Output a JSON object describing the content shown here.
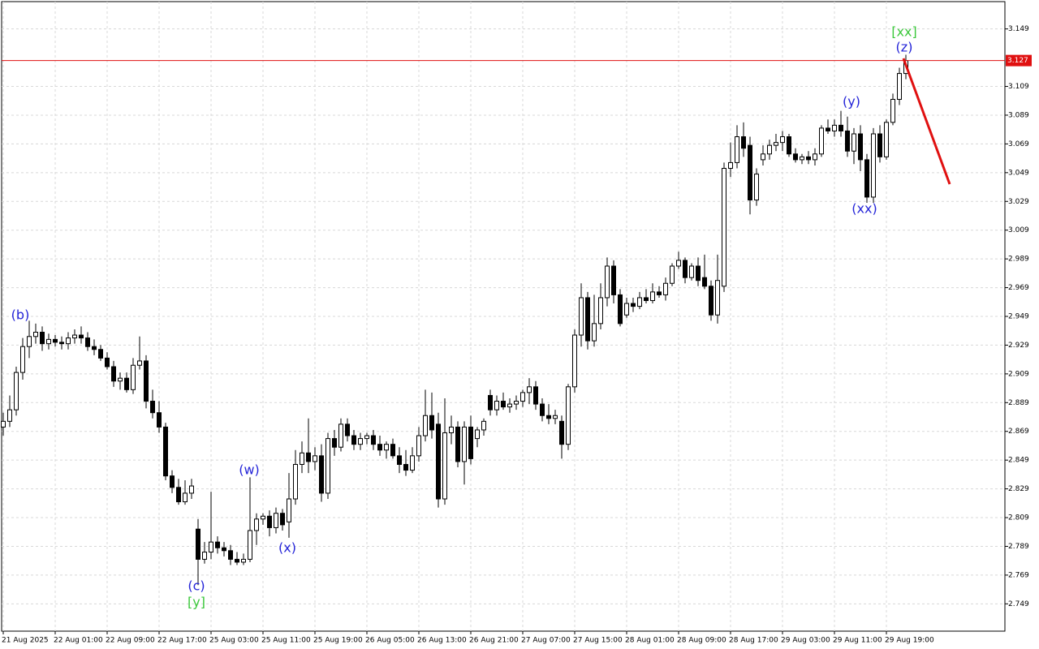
{
  "chart_data": {
    "type": "candlestick",
    "categories": [
      "21 Aug 2025",
      null,
      null,
      null,
      null,
      null,
      null,
      null,
      "22 Aug 01:00",
      null,
      null,
      null,
      null,
      null,
      null,
      null,
      "22 Aug 09:00",
      null,
      null,
      null,
      null,
      null,
      null,
      null,
      "22 Aug 17:00",
      null,
      null,
      null,
      null,
      null,
      null,
      null,
      "25 Aug 03:00",
      null,
      null,
      null,
      null,
      null,
      null,
      null,
      "25 Aug 11:00",
      null,
      null,
      null,
      null,
      null,
      null,
      null,
      "25 Aug 19:00",
      null,
      null,
      null,
      null,
      null,
      null,
      null,
      "26 Aug 05:00",
      null,
      null,
      null,
      null,
      null,
      null,
      null,
      "26 Aug 13:00",
      null,
      null,
      null,
      null,
      null,
      null,
      null,
      "26 Aug 21:00",
      null,
      null,
      null,
      null,
      null,
      null,
      null,
      "27 Aug 07:00",
      null,
      null,
      null,
      null,
      null,
      null,
      null,
      "27 Aug 15:00",
      null,
      null,
      null,
      null,
      null,
      null,
      null,
      "28 Aug 01:00",
      null,
      null,
      null,
      null,
      null,
      null,
      null,
      "28 Aug 09:00",
      null,
      null,
      null,
      null,
      null,
      null,
      null,
      "28 Aug 17:00",
      null,
      null,
      null,
      null,
      null,
      null,
      null,
      "29 Aug 03:00",
      null,
      null,
      null,
      null,
      null,
      null,
      null,
      "29 Aug 11:00",
      null,
      null,
      null,
      null,
      null,
      null,
      null,
      "29 Aug 19:00",
      null,
      null,
      null
    ],
    "candles": [
      [
        2.872,
        2.882,
        2.866,
        2.876
      ],
      [
        2.876,
        2.894,
        2.872,
        2.884
      ],
      [
        2.884,
        2.914,
        2.88,
        2.91
      ],
      [
        2.91,
        2.934,
        2.905,
        2.928
      ],
      [
        2.928,
        2.946,
        2.92,
        2.935
      ],
      [
        2.935,
        2.944,
        2.93,
        2.938
      ],
      [
        2.938,
        2.942,
        2.925,
        2.93
      ],
      [
        2.93,
        2.937,
        2.926,
        2.933
      ],
      [
        2.933,
        2.936,
        2.928,
        2.931
      ],
      [
        2.931,
        2.935,
        2.926,
        2.93
      ],
      [
        2.93,
        2.938,
        2.926,
        2.934
      ],
      [
        2.934,
        2.94,
        2.93,
        2.936
      ],
      [
        2.936,
        2.942,
        2.93,
        2.934
      ],
      [
        2.934,
        2.938,
        2.925,
        2.928
      ],
      [
        2.928,
        2.933,
        2.922,
        2.926
      ],
      [
        2.926,
        2.929,
        2.918,
        2.92
      ],
      [
        2.92,
        2.924,
        2.912,
        2.914
      ],
      [
        2.914,
        2.918,
        2.9,
        2.904
      ],
      [
        2.904,
        2.91,
        2.898,
        2.906
      ],
      [
        2.906,
        2.91,
        2.896,
        2.898
      ],
      [
        2.898,
        2.92,
        2.895,
        2.915
      ],
      [
        2.915,
        2.935,
        2.912,
        2.918
      ],
      [
        2.918,
        2.922,
        2.885,
        2.89
      ],
      [
        2.89,
        2.898,
        2.878,
        2.882
      ],
      [
        2.882,
        2.89,
        2.868,
        2.872
      ],
      [
        2.872,
        2.875,
        2.835,
        2.838
      ],
      [
        2.838,
        2.842,
        2.826,
        2.83
      ],
      [
        2.83,
        2.836,
        2.818,
        2.82
      ],
      [
        2.82,
        2.835,
        2.818,
        2.826
      ],
      [
        2.826,
        2.836,
        2.822,
        2.831
      ],
      [
        2.801,
        2.808,
        2.762,
        2.78
      ],
      [
        2.78,
        2.792,
        2.777,
        2.785
      ],
      [
        2.785,
        2.827,
        2.78,
        2.792
      ],
      [
        2.792,
        2.796,
        2.784,
        2.788
      ],
      [
        2.788,
        2.792,
        2.782,
        2.786
      ],
      [
        2.786,
        2.79,
        2.776,
        2.78
      ],
      [
        2.78,
        2.785,
        2.776,
        2.778
      ],
      [
        2.778,
        2.784,
        2.776,
        2.78
      ],
      [
        2.78,
        2.837,
        2.778,
        2.8
      ],
      [
        2.8,
        2.812,
        2.79,
        2.808
      ],
      [
        2.808,
        2.812,
        2.804,
        2.81
      ],
      [
        2.81,
        2.814,
        2.796,
        2.802
      ],
      [
        2.802,
        2.816,
        2.798,
        2.812
      ],
      [
        2.812,
        2.815,
        2.8,
        2.804
      ],
      [
        2.806,
        2.84,
        2.795,
        2.822
      ],
      [
        2.822,
        2.856,
        2.818,
        2.846
      ],
      [
        2.846,
        2.862,
        2.84,
        2.854
      ],
      [
        2.854,
        2.878,
        2.84,
        2.848
      ],
      [
        2.848,
        2.858,
        2.842,
        2.852
      ],
      [
        2.852,
        2.86,
        2.82,
        2.826
      ],
      [
        2.826,
        2.868,
        2.822,
        2.864
      ],
      [
        2.864,
        2.87,
        2.852,
        2.858
      ],
      [
        2.858,
        2.878,
        2.855,
        2.874
      ],
      [
        2.874,
        2.878,
        2.862,
        2.866
      ],
      [
        2.866,
        2.87,
        2.856,
        2.86
      ],
      [
        2.86,
        2.868,
        2.856,
        2.864
      ],
      [
        2.864,
        2.868,
        2.86,
        2.866
      ],
      [
        2.866,
        2.87,
        2.856,
        2.86
      ],
      [
        2.86,
        2.866,
        2.852,
        2.856
      ],
      [
        2.856,
        2.862,
        2.85,
        2.86
      ],
      [
        2.86,
        2.864,
        2.85,
        2.852
      ],
      [
        2.852,
        2.858,
        2.84,
        2.846
      ],
      [
        2.846,
        2.856,
        2.838,
        2.842
      ],
      [
        2.842,
        2.858,
        2.84,
        2.852
      ],
      [
        2.852,
        2.872,
        2.848,
        2.866
      ],
      [
        2.866,
        2.898,
        2.862,
        2.88
      ],
      [
        2.88,
        2.896,
        2.864,
        2.87
      ],
      [
        2.874,
        2.882,
        2.816,
        2.822
      ],
      [
        2.822,
        2.892,
        2.818,
        2.868
      ],
      [
        2.868,
        2.88,
        2.86,
        2.872
      ],
      [
        2.872,
        2.876,
        2.844,
        2.848
      ],
      [
        2.848,
        2.876,
        2.832,
        2.872
      ],
      [
        2.872,
        2.88,
        2.846,
        2.85
      ],
      [
        2.864,
        2.872,
        2.858,
        2.87
      ],
      [
        2.87,
        2.878,
        2.866,
        2.876
      ],
      [
        2.894,
        2.898,
        2.88,
        2.884
      ],
      [
        2.884,
        2.894,
        2.88,
        2.89
      ],
      [
        2.89,
        2.896,
        2.884,
        2.886
      ],
      [
        2.886,
        2.892,
        2.882,
        2.888
      ],
      [
        2.888,
        2.894,
        2.884,
        2.89
      ],
      [
        2.89,
        2.898,
        2.886,
        2.896
      ],
      [
        2.896,
        2.906,
        2.888,
        2.9
      ],
      [
        2.9,
        2.904,
        2.884,
        2.888
      ],
      [
        2.888,
        2.892,
        2.876,
        2.88
      ],
      [
        2.88,
        2.888,
        2.874,
        2.878
      ],
      [
        2.878,
        2.884,
        2.874,
        2.88
      ],
      [
        2.876,
        2.88,
        2.85,
        2.86
      ],
      [
        2.86,
        2.902,
        2.856,
        2.9
      ],
      [
        2.9,
        2.94,
        2.896,
        2.936
      ],
      [
        2.936,
        2.972,
        2.928,
        2.962
      ],
      [
        2.962,
        2.966,
        2.926,
        2.932
      ],
      [
        2.932,
        2.964,
        2.928,
        2.944
      ],
      [
        2.944,
        2.972,
        2.94,
        2.962
      ],
      [
        2.962,
        2.99,
        2.956,
        2.984
      ],
      [
        2.984,
        2.988,
        2.958,
        2.964
      ],
      [
        2.964,
        2.968,
        2.942,
        2.944
      ],
      [
        2.95,
        2.962,
        2.948,
        2.958
      ],
      [
        2.958,
        2.962,
        2.952,
        2.956
      ],
      [
        2.956,
        2.966,
        2.954,
        2.962
      ],
      [
        2.962,
        2.968,
        2.958,
        2.96
      ],
      [
        2.96,
        2.972,
        2.958,
        2.966
      ],
      [
        2.966,
        2.97,
        2.962,
        2.964
      ],
      [
        2.964,
        2.976,
        2.96,
        2.972
      ],
      [
        2.972,
        2.986,
        2.97,
        2.984
      ],
      [
        2.984,
        2.994,
        2.982,
        2.988
      ],
      [
        2.988,
        2.99,
        2.972,
        2.976
      ],
      [
        2.976,
        2.986,
        2.974,
        2.984
      ],
      [
        2.984,
        2.99,
        2.97,
        2.974
      ],
      [
        2.976,
        2.992,
        2.968,
        2.97
      ],
      [
        2.97,
        2.974,
        2.946,
        2.95
      ],
      [
        2.95,
        2.992,
        2.944,
        2.974
      ],
      [
        2.97,
        3.056,
        2.966,
        3.052
      ],
      [
        3.052,
        3.07,
        3.046,
        3.056
      ],
      [
        3.056,
        3.082,
        3.052,
        3.074
      ],
      [
        3.074,
        3.084,
        3.06,
        3.066
      ],
      [
        3.068,
        3.074,
        3.02,
        3.03
      ],
      [
        3.03,
        3.052,
        3.026,
        3.048
      ],
      [
        3.058,
        3.068,
        3.054,
        3.062
      ],
      [
        3.062,
        3.072,
        3.058,
        3.068
      ],
      [
        3.068,
        3.076,
        3.064,
        3.07
      ],
      [
        3.07,
        3.078,
        3.064,
        3.074
      ],
      [
        3.074,
        3.076,
        3.06,
        3.062
      ],
      [
        3.062,
        3.066,
        3.056,
        3.058
      ],
      [
        3.058,
        3.062,
        3.055,
        3.06
      ],
      [
        3.06,
        3.064,
        3.055,
        3.058
      ],
      [
        3.058,
        3.066,
        3.054,
        3.062
      ],
      [
        3.062,
        3.082,
        3.06,
        3.08
      ],
      [
        3.08,
        3.086,
        3.076,
        3.078
      ],
      [
        3.078,
        3.086,
        3.074,
        3.082
      ],
      [
        3.082,
        3.092,
        3.074,
        3.078
      ],
      [
        3.078,
        3.088,
        3.06,
        3.064
      ],
      [
        3.064,
        3.08,
        3.055,
        3.076
      ],
      [
        3.076,
        3.082,
        3.05,
        3.058
      ],
      [
        3.058,
        3.062,
        3.028,
        3.032
      ],
      [
        3.032,
        3.08,
        3.028,
        3.076
      ],
      [
        3.076,
        3.082,
        3.056,
        3.06
      ],
      [
        3.06,
        3.086,
        3.058,
        3.084
      ],
      [
        3.084,
        3.104,
        3.082,
        3.1
      ],
      [
        3.1,
        3.122,
        3.096,
        3.118
      ],
      [
        3.118,
        3.131,
        3.114,
        3.127
      ]
    ],
    "ylim": [
      2.73,
      3.168
    ],
    "yticks": [
      3.149,
      3.109,
      3.089,
      3.069,
      3.049,
      3.029,
      3.009,
      2.989,
      2.969,
      2.949,
      2.929,
      2.909,
      2.889,
      2.869,
      2.849,
      2.829,
      2.809,
      2.789,
      2.769,
      2.749
    ],
    "grid": true,
    "current_price": 3.127,
    "price_line_color": "#e01010",
    "up_color": "#ffffff",
    "down_color": "#000000",
    "annotations": [
      {
        "text": "(b)",
        "color": "#2424d8"
      },
      {
        "text": "(c)",
        "color": "#2424d8"
      },
      {
        "text": "[y]",
        "color": "#3cc83c"
      },
      {
        "text": "(w)",
        "color": "#2424d8"
      },
      {
        "text": "(x)",
        "color": "#2424d8"
      },
      {
        "text": "(y)",
        "color": "#2424d8"
      },
      {
        "text": "(xx)",
        "color": "#2424d8"
      },
      {
        "text": "[xx]",
        "color": "#3cc83c"
      },
      {
        "text": "(z)",
        "color": "#2424d8"
      }
    ]
  }
}
